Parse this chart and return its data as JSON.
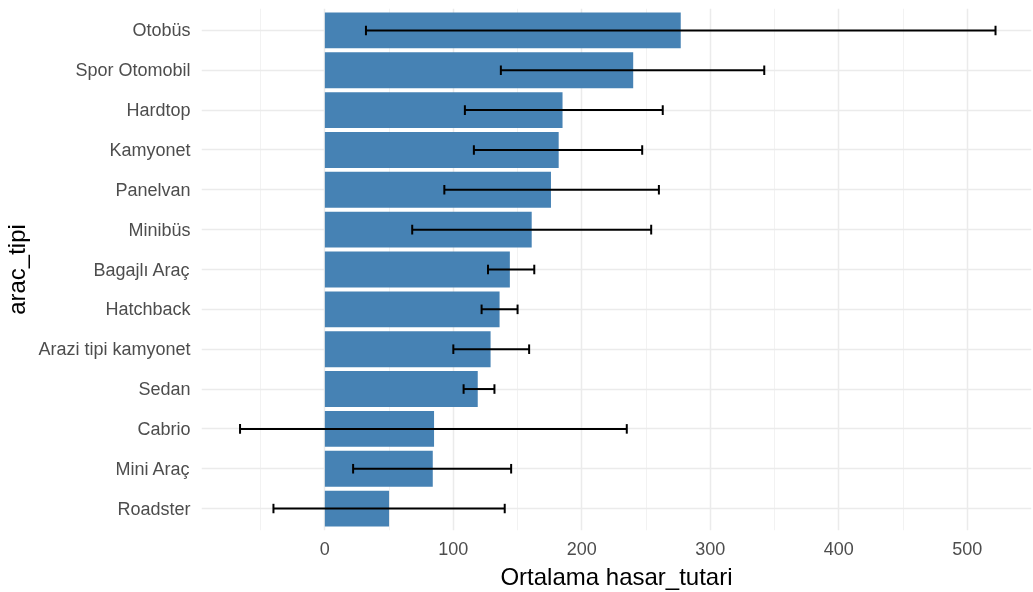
{
  "chart_data": {
    "type": "bar",
    "orientation": "horizontal",
    "xlabel": "Ortalama hasar_tutari",
    "ylabel": "arac_tipi",
    "categories": [
      "Otobüs",
      "Spor Otomobil",
      "Hardtop",
      "Kamyonet",
      "Panelvan",
      "Minibüs",
      "Bagajlı Araç",
      "Hatchback",
      "Arazi tipi kamyonet",
      "Sedan",
      "Cabrio",
      "Mini Araç",
      "Roadster"
    ],
    "values": [
      277,
      240,
      185,
      182,
      176,
      161,
      144,
      136,
      129,
      119,
      85,
      84,
      50
    ],
    "errors": [
      [
        32,
        522
      ],
      [
        137,
        342
      ],
      [
        109,
        263
      ],
      [
        116,
        247
      ],
      [
        93,
        260
      ],
      [
        68,
        254
      ],
      [
        127,
        163
      ],
      [
        122,
        150
      ],
      [
        100,
        159
      ],
      [
        108,
        132
      ],
      [
        -66,
        235
      ],
      [
        22,
        145
      ],
      [
        -40,
        140
      ]
    ],
    "color": "#4682b4",
    "xlim": [
      -96,
      550
    ],
    "xticks": [
      0,
      100,
      200,
      300,
      400,
      500
    ],
    "grid": true
  }
}
